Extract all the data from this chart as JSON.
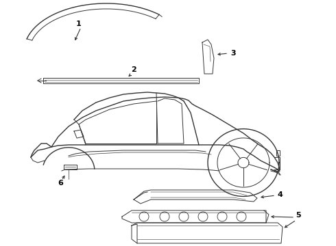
{
  "bg_color": "#ffffff",
  "line_color": "#333333",
  "label_color": "#000000",
  "fig_w": 4.9,
  "fig_h": 3.6,
  "dpi": 100
}
